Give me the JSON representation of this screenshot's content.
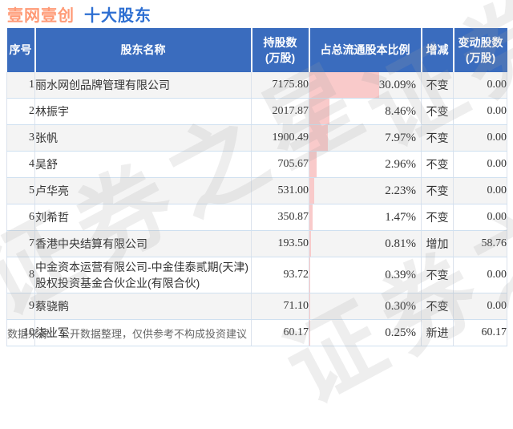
{
  "title": {
    "stock": "壹网壹创",
    "section": "十大股东"
  },
  "columns": [
    "序号",
    "股东名称",
    "持股数\n(万股)",
    "占总流通股本比例",
    "增减",
    "变动股数\n(万股)"
  ],
  "rows": [
    {
      "no": "1",
      "name": "丽水网创品牌管理有限公司",
      "shares": "7175.80",
      "pct": "30.09%",
      "pct_value": 30.09,
      "change": "不变",
      "change_shares": "0.00",
      "highlight": false
    },
    {
      "no": "2",
      "name": "林振宇",
      "shares": "2017.87",
      "pct": "8.46%",
      "pct_value": 8.46,
      "change": "不变",
      "change_shares": "0.00",
      "highlight": false
    },
    {
      "no": "3",
      "name": "张帆",
      "shares": "1900.49",
      "pct": "7.97%",
      "pct_value": 7.97,
      "change": "不变",
      "change_shares": "0.00",
      "highlight": false
    },
    {
      "no": "4",
      "name": "吴舒",
      "shares": "705.67",
      "pct": "2.96%",
      "pct_value": 2.96,
      "change": "不变",
      "change_shares": "0.00",
      "highlight": false
    },
    {
      "no": "5",
      "name": "卢华亮",
      "shares": "531.00",
      "pct": "2.23%",
      "pct_value": 2.23,
      "change": "不变",
      "change_shares": "0.00",
      "highlight": false
    },
    {
      "no": "6",
      "name": "刘希哲",
      "shares": "350.87",
      "pct": "1.47%",
      "pct_value": 1.47,
      "change": "不变",
      "change_shares": "0.00",
      "highlight": false
    },
    {
      "no": "7",
      "name": "香港中央结算有限公司",
      "shares": "193.50",
      "pct": "0.81%",
      "pct_value": 0.81,
      "change": "增加",
      "change_shares": "58.76",
      "highlight": true
    },
    {
      "no": "8",
      "name": "中金资本运营有限公司-中金佳泰贰期(天津)股权投资基金合伙企业(有限合伙)",
      "shares": "93.72",
      "pct": "0.39%",
      "pct_value": 0.39,
      "change": "不变",
      "change_shares": "0.00",
      "highlight": false
    },
    {
      "no": "9",
      "name": "蔡骁鹘",
      "shares": "71.10",
      "pct": "0.30%",
      "pct_value": 0.3,
      "change": "不变",
      "change_shares": "0.00",
      "highlight": false
    },
    {
      "no": "10",
      "name": "柒业军",
      "shares": "60.17",
      "pct": "0.25%",
      "pct_value": 0.25,
      "change": "新进",
      "change_shares": "60.17",
      "highlight": true
    }
  ],
  "footer_note": "数据来源：公开数据整理，仅供参考不构成投资建议",
  "watermark_text": "证券之星",
  "colors": {
    "header_bg": "#3a6cbe",
    "title_stock": "#ff9a76",
    "title_section": "#2e6fd2",
    "bar_pink": "#f9caca",
    "highlight_red": "#ee3333",
    "odd_row_bg": "#f4f4f4"
  },
  "chart_data": {
    "type": "table",
    "title": "壹网壹创 十大股东",
    "columns": [
      "序号",
      "股东名称",
      "持股数(万股)",
      "占总流通股本比例",
      "增减",
      "变动股数(万股)"
    ],
    "rows": [
      [
        1,
        "丽水网创品牌管理有限公司",
        7175.8,
        30.09,
        "不变",
        0.0
      ],
      [
        2,
        "林振宇",
        2017.87,
        8.46,
        "不变",
        0.0
      ],
      [
        3,
        "张帆",
        1900.49,
        7.97,
        "不变",
        0.0
      ],
      [
        4,
        "吴舒",
        705.67,
        2.96,
        "不变",
        0.0
      ],
      [
        5,
        "卢华亮",
        531.0,
        2.23,
        "不变",
        0.0
      ],
      [
        6,
        "刘希哲",
        350.87,
        1.47,
        "不变",
        0.0
      ],
      [
        7,
        "香港中央结算有限公司",
        193.5,
        0.81,
        "增加",
        58.76
      ],
      [
        8,
        "中金资本运营有限公司-中金佳泰贰期(天津)股权投资基金合伙企业(有限合伙)",
        93.72,
        0.39,
        "不变",
        0.0
      ],
      [
        9,
        "蔡骁鹘",
        71.1,
        0.3,
        "不变",
        0.0
      ],
      [
        10,
        "柒业军",
        60.17,
        0.25,
        "新进",
        60.17
      ]
    ],
    "bar_column": "占总流通股本比例",
    "bar_units": "percent",
    "bar_color": "#f9caca",
    "highlight_color": "#ee3333"
  }
}
